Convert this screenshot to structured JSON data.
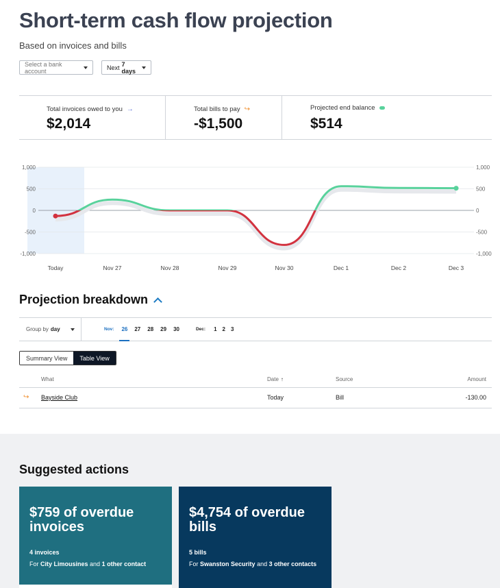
{
  "header": {
    "title": "Short-term cash flow projection",
    "subtitle": "Based on invoices and bills"
  },
  "filters": {
    "bank_placeholder": "Select a bank account",
    "days_prefix": "Next",
    "days_value": "7 days"
  },
  "stats": {
    "invoices_label": "Total invoices owed to you",
    "invoices_value": "$2,014",
    "bills_label": "Total bills to pay",
    "bills_value": "-$1,500",
    "balance_label": "Projected end balance",
    "balance_value": "$514",
    "icons": [
      "arrow-in-icon",
      "arrow-out-icon",
      "balance-dot-icon"
    ]
  },
  "chart_data": {
    "type": "line",
    "categories": [
      "Today",
      "Nov 27",
      "Nov 28",
      "Nov 29",
      "Nov 30",
      "Dec 1",
      "Dec 2",
      "Dec 3"
    ],
    "values": [
      -130,
      250,
      0,
      0,
      -800,
      560,
      520,
      514
    ],
    "ylim": [
      -1000,
      1000
    ],
    "yticks": [
      "1,000",
      "500",
      "0",
      "-500",
      "-1,000"
    ],
    "positive_color": "#59d29c",
    "negative_color": "#d2323f",
    "highlight_color": "#e8f1fb",
    "grid": true
  },
  "breakdown": {
    "title": "Projection breakdown",
    "group_by_label": "Group by",
    "group_by_value": "day",
    "months": [
      "Nov:",
      "Dec:"
    ],
    "nov_days": [
      "26",
      "27",
      "28",
      "29",
      "30"
    ],
    "dec_days": [
      "1",
      "2",
      "3"
    ],
    "active_day": "26"
  },
  "views": {
    "summary": "Summary View",
    "table": "Table View"
  },
  "table": {
    "headers": {
      "what": "What",
      "date": "Date",
      "source": "Source",
      "amount": "Amount"
    },
    "rows": [
      {
        "what": "Bayside Club",
        "date": "Today",
        "source": "Bill",
        "amount": "-130.00"
      }
    ]
  },
  "suggested": {
    "title": "Suggested actions",
    "cards": [
      {
        "big": "$759 of overdue invoices",
        "count": "4 invoices",
        "for_prefix": "For",
        "contact": "City Limousines",
        "and": "and",
        "others": "1 other contact",
        "color": "#1f6f80"
      },
      {
        "big": "$4,754 of overdue bills",
        "count": "5 bills",
        "for_prefix": "For",
        "contact": "Swanston Security",
        "and": "and",
        "others": "3 other contacts",
        "color": "#07395e"
      }
    ]
  }
}
